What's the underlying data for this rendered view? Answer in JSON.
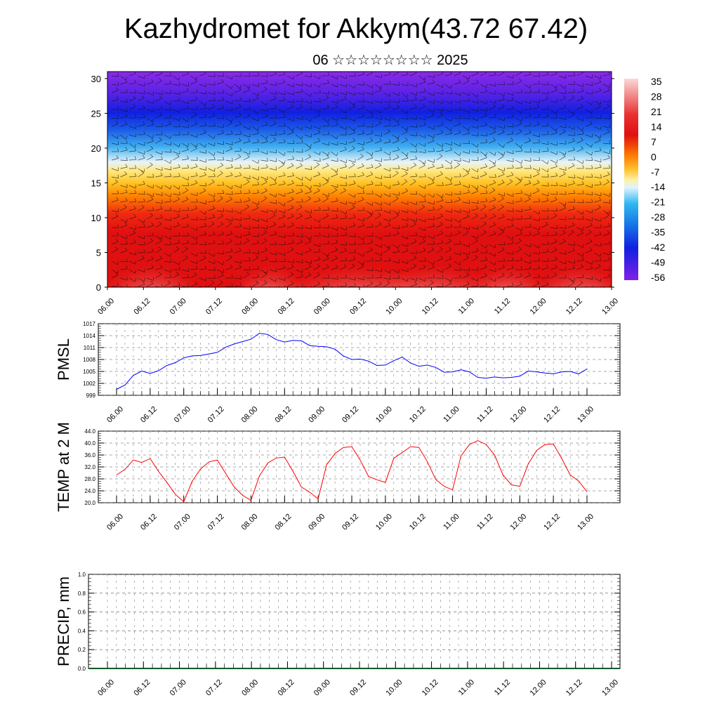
{
  "header": {
    "title": "Kazhydromet for Akkym(43.72 67.42)",
    "subtitle": "06 ☆☆☆☆☆☆☆☆ 2025"
  },
  "chart_data": [
    {
      "type": "heatmap",
      "title": "",
      "x_ticks": [
        "06.00",
        "06.12",
        "07.00",
        "07.12",
        "08.00",
        "08.12",
        "09.00",
        "09.12",
        "10.00",
        "10.12",
        "11.00",
        "11.12",
        "12.00",
        "12.12",
        "13.00"
      ],
      "y_ticks": [
        "0",
        "5",
        "10",
        "15",
        "20",
        "25",
        "30"
      ],
      "ylim": [
        0,
        31
      ],
      "colorbar_labels": [
        "35",
        "28",
        "21",
        "14",
        "7",
        "0",
        "-7",
        "-14",
        "-21",
        "-28",
        "-35",
        "-42",
        "-49",
        "-56"
      ],
      "colorbar_range": [
        -60,
        38
      ],
      "colors": {
        "hot": "#f4a8a8",
        "red": "#e01010",
        "orange": "#ff7a00",
        "yellow": "#ffe050",
        "cyan": "#30b8f0",
        "blue": "#1020e0",
        "purple": "#8020e8"
      },
      "overlay": "wind barbs"
    },
    {
      "type": "line",
      "ylabel": "PMSL",
      "ylim": [
        999,
        1017
      ],
      "y_ticks": [
        "999",
        "1002",
        "1005",
        "1008",
        "1011",
        "1014",
        "1017"
      ],
      "x_ticks": [
        "06.00",
        "06.12",
        "07.00",
        "07.12",
        "08.00",
        "08.12",
        "09.00",
        "09.12",
        "10.00",
        "10.12",
        "11.00",
        "11.12",
        "12.00",
        "12.12",
        "13.00"
      ],
      "line_color": "#0000ff",
      "values": [
        1000.5,
        1001.6,
        1004.0,
        1005.1,
        1004.5,
        1005.2,
        1006.5,
        1007.2,
        1008.4,
        1008.9,
        1009.0,
        1009.4,
        1009.8,
        1011.1,
        1011.9,
        1012.5,
        1013.1,
        1014.6,
        1014.3,
        1013.0,
        1012.4,
        1012.8,
        1012.7,
        1011.5,
        1011.3,
        1011.2,
        1010.6,
        1008.9,
        1008.0,
        1008.1,
        1007.6,
        1006.5,
        1006.6,
        1007.7,
        1008.6,
        1007.1,
        1006.3,
        1006.6,
        1006.0,
        1004.8,
        1004.9,
        1005.4,
        1004.9,
        1003.5,
        1003.3,
        1003.6,
        1003.4,
        1003.5,
        1003.8,
        1005.1,
        1004.9,
        1004.6,
        1004.4,
        1004.9,
        1005.0,
        1004.4,
        1005.6
      ]
    },
    {
      "type": "line",
      "ylabel": "TEMP at 2 M",
      "ylim": [
        20,
        44
      ],
      "y_ticks": [
        "20.0",
        "24.0",
        "28.0",
        "32.0",
        "36.0",
        "40.0",
        "44.0"
      ],
      "x_ticks": [
        "06.00",
        "06.12",
        "07.00",
        "07.12",
        "08.00",
        "08.12",
        "09.00",
        "09.12",
        "10.00",
        "10.12",
        "11.00",
        "11.12",
        "12.00",
        "12.12",
        "13.00"
      ],
      "line_color": "#ff0000",
      "values": [
        29.3,
        31.2,
        34.3,
        33.5,
        34.8,
        30.5,
        26.8,
        22.8,
        20.3,
        27.2,
        31.3,
        33.7,
        34.3,
        29.8,
        25.3,
        22.5,
        20.8,
        29.0,
        33.3,
        35.0,
        35.3,
        30.5,
        25.3,
        23.5,
        21.3,
        32.7,
        36.5,
        38.5,
        38.8,
        34.3,
        28.8,
        27.7,
        26.8,
        34.9,
        36.8,
        38.8,
        38.5,
        33.7,
        27.8,
        25.5,
        24.3,
        35.7,
        39.5,
        40.8,
        39.5,
        36.0,
        29.3,
        26.0,
        25.5,
        33.0,
        37.5,
        39.5,
        39.7,
        34.8,
        29.3,
        27.3,
        23.7
      ]
    },
    {
      "type": "bar",
      "ylabel": "PRECIP, mm",
      "ylim": [
        0.0,
        1.0
      ],
      "y_ticks": [
        "0.0",
        "0.2",
        "0.4",
        "0.6",
        "0.8",
        "1.0"
      ],
      "x_ticks": [
        "06.00",
        "06.12",
        "07.00",
        "07.12",
        "08.00",
        "08.12",
        "09.00",
        "09.12",
        "10.00",
        "10.12",
        "11.00",
        "11.12",
        "12.00",
        "12.12",
        "13.00"
      ],
      "values": [
        0,
        0,
        0,
        0,
        0,
        0,
        0,
        0,
        0,
        0,
        0,
        0,
        0,
        0,
        0,
        0,
        0,
        0,
        0,
        0,
        0,
        0,
        0,
        0,
        0,
        0,
        0,
        0,
        0,
        0,
        0,
        0,
        0,
        0,
        0,
        0,
        0,
        0,
        0,
        0,
        0,
        0,
        0,
        0,
        0,
        0,
        0,
        0,
        0,
        0,
        0,
        0,
        0,
        0,
        0,
        0
      ]
    }
  ]
}
